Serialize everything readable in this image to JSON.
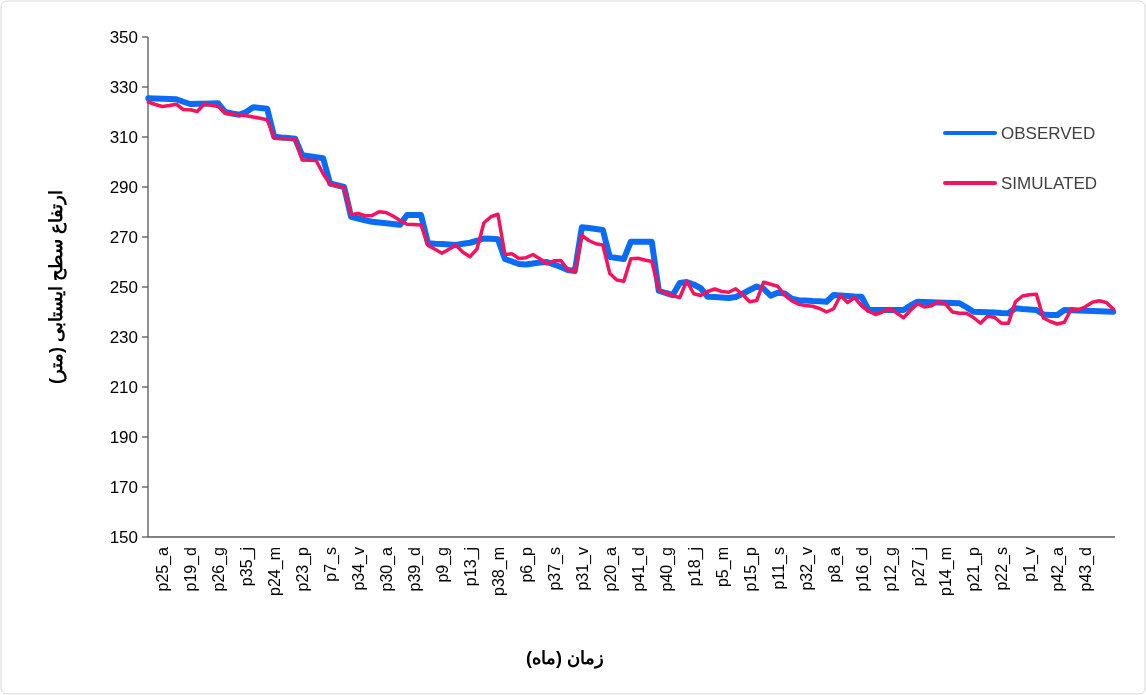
{
  "chart_data": {
    "type": "line",
    "xlabel": "زمان (ماه)",
    "ylabel": "ارتفاع سطح ایستابی (متر)",
    "categories": [
      null,
      null,
      "p25_a",
      null,
      null,
      null,
      "p19_d",
      null,
      null,
      null,
      "p26_g",
      null,
      null,
      null,
      "p35_j",
      null,
      null,
      null,
      "p24_m",
      null,
      null,
      null,
      "p23_p",
      null,
      null,
      null,
      "p7_s",
      null,
      null,
      null,
      "p34_v",
      null,
      null,
      null,
      "p30_a",
      null,
      null,
      null,
      "p39_d",
      null,
      null,
      null,
      "p9_g",
      null,
      null,
      null,
      "p13_j",
      null,
      null,
      null,
      "p38_m",
      null,
      null,
      null,
      "p6_p",
      null,
      null,
      null,
      "p37_s",
      null,
      null,
      null,
      "p31_v",
      null,
      null,
      null,
      "p20_a",
      null,
      null,
      null,
      "p41_d",
      null,
      null,
      null,
      "p40_g",
      null,
      null,
      null,
      "p18_j",
      null,
      null,
      null,
      "p5_m",
      null,
      null,
      null,
      "p15_p",
      null,
      null,
      null,
      "p11_s",
      null,
      null,
      null,
      "p32_v",
      null,
      null,
      null,
      "p8_a",
      null,
      null,
      null,
      "p16_d",
      null,
      null,
      null,
      "p12_g",
      null,
      null,
      null,
      "p27_j",
      null,
      null,
      null,
      "p14_m",
      null,
      null,
      null,
      "p21_p",
      null,
      null,
      null,
      "p22_s",
      null,
      null,
      null,
      "p1_v",
      null,
      null,
      null,
      "p42_a",
      null,
      null,
      null,
      "p43_d",
      null,
      null,
      null,
      null
    ],
    "ylim": [
      150,
      350
    ],
    "yticks": [
      150,
      170,
      190,
      210,
      230,
      250,
      270,
      290,
      310,
      330,
      350
    ],
    "legend": "top right",
    "series": [
      {
        "name": "OBSERVED",
        "color": "#0a6cf5",
        "values": [
          325.5,
          325.4,
          325.3,
          325.2,
          325.1,
          324.1,
          323.2,
          323.3,
          323.3,
          323.4,
          323.5,
          320.0,
          319.4,
          318.9,
          320.0,
          321.9,
          321.6,
          321.3,
          310.1,
          309.8,
          309.6,
          309.3,
          302.7,
          302.3,
          301.9,
          301.5,
          291.4,
          290.7,
          290.0,
          278.1,
          277.4,
          276.7,
          276.1,
          275.8,
          275.5,
          275.2,
          274.9,
          278.8,
          278.8,
          278.8,
          267.5,
          267.3,
          267.2,
          267.0,
          266.8,
          267.3,
          267.7,
          268.5,
          269.4,
          269.3,
          269.1,
          261.2,
          260.2,
          259.2,
          259.0,
          259.4,
          259.8,
          260.0,
          259.0,
          258.0,
          256.8,
          256.4,
          273.9,
          273.6,
          273.2,
          272.8,
          262.0,
          261.6,
          261.2,
          268.1,
          268.1,
          268.1,
          268.1,
          248.5,
          247.6,
          246.8,
          251.6,
          252.0,
          251.0,
          249.5,
          246.1,
          246.0,
          245.8,
          245.6,
          246.0,
          247.3,
          248.8,
          250.2,
          249.3,
          246.5,
          247.7,
          247.4,
          245.3,
          244.7,
          244.6,
          244.4,
          244.3,
          244.1,
          246.8,
          246.6,
          246.4,
          246.2,
          246.1,
          240.8,
          240.8,
          240.8,
          240.8,
          240.8,
          240.8,
          242.6,
          244.1,
          244.0,
          243.9,
          243.8,
          243.7,
          243.6,
          243.5,
          241.9,
          240.1,
          240.0,
          239.9,
          239.8,
          239.6,
          239.5,
          241.5,
          241.2,
          241.0,
          240.8,
          239.0,
          238.8,
          238.8,
          240.8,
          240.7,
          240.6,
          240.5,
          240.4,
          240.3,
          240.2,
          240.1
        ]
      },
      {
        "name": "SIMULATED",
        "color": "#f5135f",
        "values": [
          324.0,
          323.0,
          322.2,
          322.6,
          323.1,
          321.0,
          320.9,
          320.2,
          323.2,
          322.7,
          322.2,
          319.5,
          319.2,
          318.8,
          318.5,
          318.0,
          317.5,
          316.9,
          309.5,
          309.4,
          309.3,
          309.2,
          300.8,
          300.7,
          300.6,
          295.3,
          291.1,
          290.5,
          289.7,
          278.9,
          279.4,
          278.5,
          278.6,
          280.1,
          279.8,
          278.4,
          276.6,
          275.1,
          275.0,
          274.8,
          266.6,
          265.1,
          263.5,
          265.1,
          266.7,
          263.9,
          262.1,
          265.2,
          275.7,
          278.1,
          279.1,
          263.0,
          263.3,
          261.4,
          261.7,
          263.0,
          261.3,
          259.3,
          260.5,
          260.6,
          256.9,
          256.1,
          270.6,
          268.6,
          267.3,
          266.8,
          255.4,
          252.8,
          252.3,
          261.3,
          261.5,
          260.8,
          260.2,
          249.0,
          247.6,
          246.5,
          245.8,
          252.4,
          247.3,
          246.6,
          248.2,
          249.2,
          248.2,
          247.9,
          249.3,
          247.0,
          244.1,
          244.6,
          251.9,
          251.1,
          250.3,
          246.9,
          244.5,
          243.1,
          242.6,
          242.3,
          241.4,
          240.0,
          241.3,
          246.6,
          243.8,
          245.8,
          242.5,
          240.3,
          239.0,
          240.0,
          241.4,
          239.7,
          237.7,
          240.7,
          243.3,
          242.0,
          242.5,
          244.1,
          243.2,
          240.0,
          239.5,
          239.5,
          237.8,
          235.5,
          238.3,
          237.9,
          235.5,
          235.5,
          244.1,
          246.4,
          246.9,
          247.1,
          237.6,
          236.2,
          235.2,
          235.9,
          241.3,
          240.9,
          242.1,
          243.9,
          244.5,
          243.8,
          241.2
        ]
      }
    ]
  }
}
